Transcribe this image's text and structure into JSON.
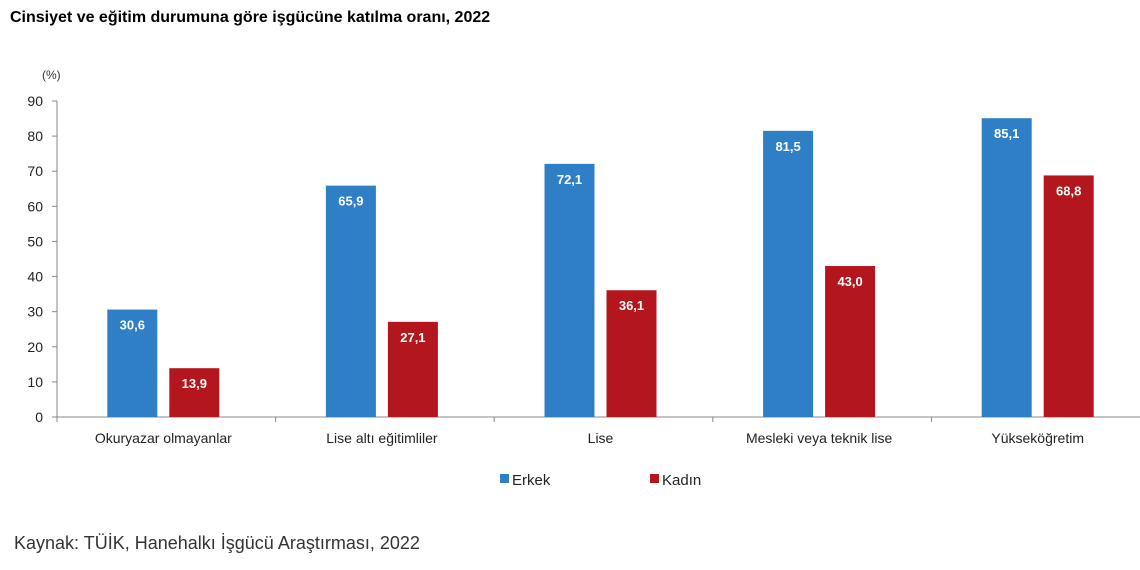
{
  "chart_data": {
    "type": "bar",
    "title": "Cinsiyet ve eğitim durumuna göre işgücüne katılma oranı, 2022",
    "ylabel": "(%)",
    "xlabel": "",
    "ylim": [
      0,
      90
    ],
    "yticks": [
      0,
      10,
      20,
      30,
      40,
      50,
      60,
      70,
      80,
      90
    ],
    "grid": false,
    "legend_position": "bottom",
    "categories": [
      "Okuryazar olmayanlar",
      "Lise altı eğitimliler",
      "Lise",
      "Mesleki veya teknik lise",
      "Yükseköğretim"
    ],
    "series": [
      {
        "name": "Erkek",
        "color": "#2f7fc6",
        "values": [
          30.6,
          65.9,
          72.1,
          81.5,
          85.1
        ],
        "labels": [
          "30,6",
          "65,9",
          "72,1",
          "81,5",
          "85,1"
        ]
      },
      {
        "name": "Kadın",
        "color": "#b3171d",
        "values": [
          13.9,
          27.1,
          36.1,
          43.0,
          68.8
        ],
        "labels": [
          "13,9",
          "27,1",
          "36,1",
          "43,0",
          "68,8"
        ]
      }
    ],
    "source": "Kaynak: TÜİK, Hanehalkı İşgücü Araştırması, 2022"
  }
}
